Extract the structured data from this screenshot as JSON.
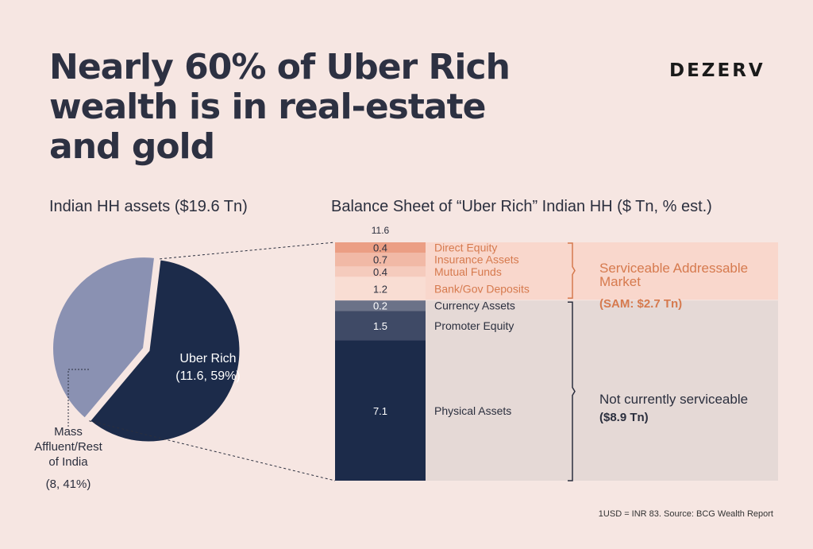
{
  "brand": "DEZERV",
  "title_lines": [
    "Nearly 60% of Uber Rich",
    "wealth is in real-estate",
    "and gold"
  ],
  "footnote": "1USD = INR 83. Source: BCG Wealth Report",
  "colors": {
    "background": "#f6e6e2",
    "uber_rich": "#1c2b4a",
    "mass_affluent": "#8a91b2",
    "accent_orange": "#d67a4e",
    "sam_box": "#f9d7cc",
    "not_serviceable_box": "#e5d9d6"
  },
  "chart_data": [
    {
      "type": "pie",
      "title": "Indian HH assets ($19.6 Tn)",
      "slices": [
        {
          "name": "Uber Rich",
          "value": 11.6,
          "percent": 59,
          "label_line1": "Uber Rich",
          "label_line2": "(11.6, 59%)",
          "color": "#1c2b4a"
        },
        {
          "name": "Mass Affluent/Rest of India",
          "value": 8,
          "percent": 41,
          "label_lines": [
            "Mass",
            "Affluent/Rest",
            "of India"
          ],
          "label_value": "(8, 41%)",
          "color": "#8a91b2"
        }
      ]
    },
    {
      "type": "bar",
      "stacked": true,
      "title": "Balance Sheet of “Uber Rich” Indian HH ($ Tn, % est.)",
      "total_label": "11.6",
      "total": 11.6,
      "segments": [
        {
          "name": "Direct Equity",
          "value": 0.4,
          "label": "0.4",
          "color": "#eb9e84",
          "group": "sam"
        },
        {
          "name": "Insurance Assets",
          "value": 0.7,
          "label": "0.7",
          "color": "#f1b9a6",
          "group": "sam"
        },
        {
          "name": "Mutual Funds",
          "value": 0.4,
          "label": "0.4",
          "color": "#f5cbbd",
          "group": "sam"
        },
        {
          "name": "Bank/Gov Deposits",
          "value": 1.2,
          "label": "1.2",
          "color": "#f9ddd3",
          "group": "sam"
        },
        {
          "name": "Currency Assets",
          "value": 0.2,
          "label": "0.2",
          "color": "#6b7288",
          "group": "non"
        },
        {
          "name": "Promoter Equity",
          "value": 1.5,
          "label": "1.5",
          "color": "#3f4a66",
          "group": "non"
        },
        {
          "name": "Physical Assets",
          "value": 7.1,
          "label": "7.1",
          "color": "#1c2b4a",
          "group": "non"
        }
      ],
      "groups": {
        "sam": {
          "lines": [
            "Serviceable Addressable",
            "Market"
          ],
          "value_text": "(SAM: $2.7 Tn)"
        },
        "non": {
          "lines": [
            "Not currently serviceable"
          ],
          "value_text": "($8.9 Tn)"
        }
      }
    }
  ]
}
